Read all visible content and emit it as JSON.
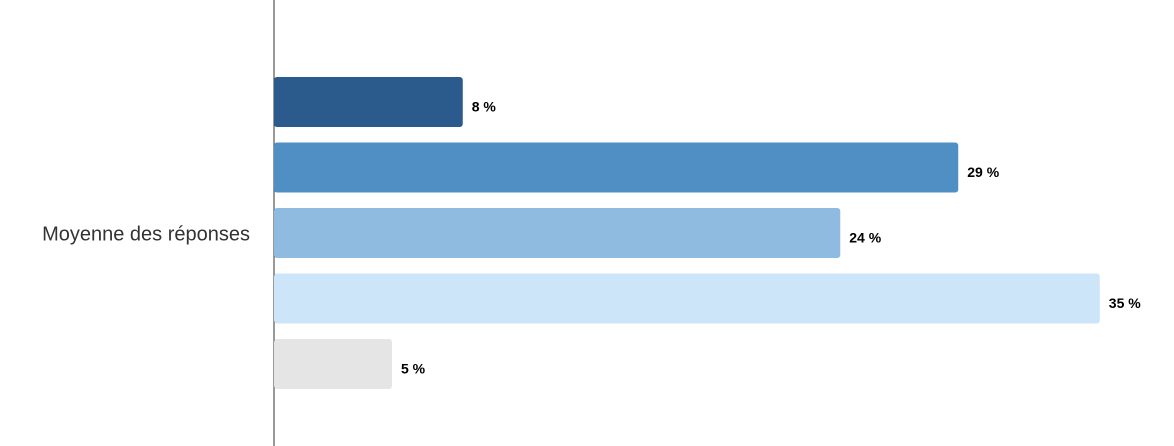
{
  "chart_data": {
    "type": "bar",
    "orientation": "horizontal",
    "categories": [
      "Moyenne des réponses"
    ],
    "series": [
      {
        "color": "#2a5b8c",
        "values": [
          8
        ],
        "value_labels": [
          "8 %"
        ]
      },
      {
        "color": "#4f8fc4",
        "values": [
          29
        ],
        "value_labels": [
          "29 %"
        ]
      },
      {
        "color": "#8fbbe0",
        "values": [
          24
        ],
        "value_labels": [
          "24 %"
        ]
      },
      {
        "color": "#cce5f9",
        "values": [
          35
        ],
        "value_labels": [
          "35 %"
        ]
      },
      {
        "color": "#e5e5e5",
        "values": [
          5
        ],
        "value_labels": [
          "5 %"
        ]
      }
    ],
    "xlim": [
      0,
      37
    ]
  }
}
